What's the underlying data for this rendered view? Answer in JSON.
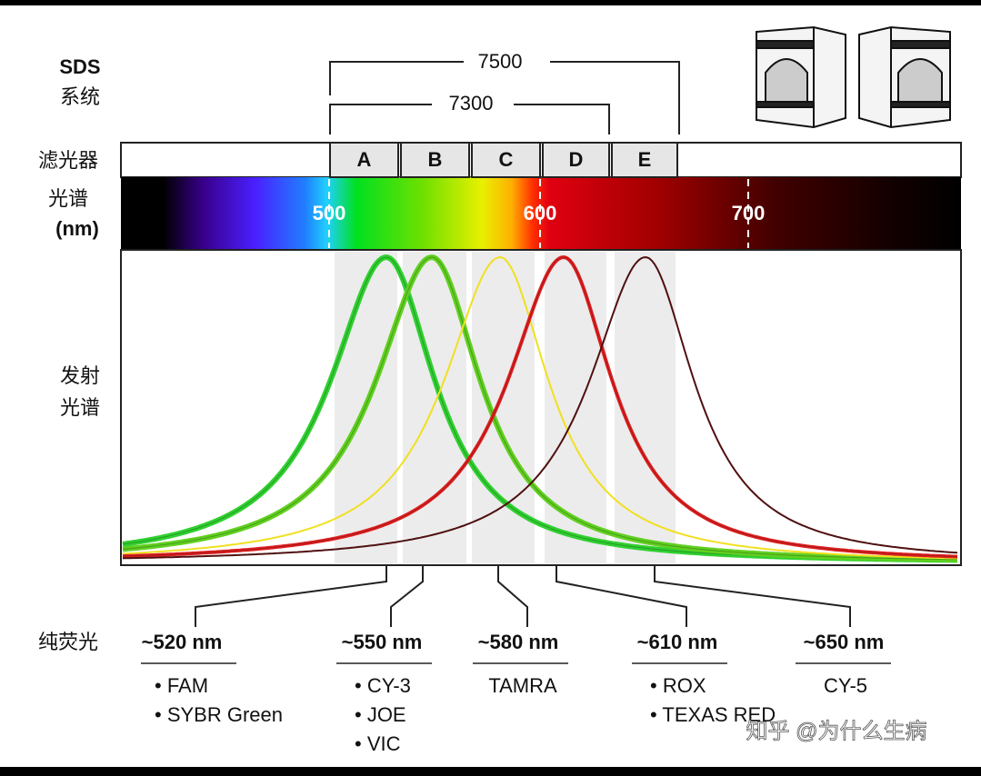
{
  "header": {
    "system_label": [
      "SDS",
      "系统"
    ],
    "instruments": [
      "7500",
      "7300"
    ]
  },
  "row_labels": {
    "filters": "滤光器",
    "spectrum": [
      "光谱",
      "(nm)"
    ],
    "emission": [
      "发射",
      "光谱"
    ],
    "pure_dye": "纯荧光"
  },
  "filters": [
    "A",
    "B",
    "C",
    "D",
    "E"
  ],
  "spectrum_ticks": [
    "500",
    "600",
    "700"
  ],
  "dyes": [
    {
      "wavelength": "~520 nm",
      "names": [
        "• FAM",
        "• SYBR Green"
      ]
    },
    {
      "wavelength": "~550 nm",
      "names": [
        "• CY-3",
        "• JOE",
        "• VIC"
      ]
    },
    {
      "wavelength": "~580 nm",
      "names": [
        "TAMRA"
      ]
    },
    {
      "wavelength": "~610 nm",
      "names": [
        "• ROX",
        "• TEXAS RED"
      ]
    },
    {
      "wavelength": "~650 nm",
      "names": [
        "CY-5"
      ]
    }
  ],
  "watermark": "知乎 @为什么生病"
}
